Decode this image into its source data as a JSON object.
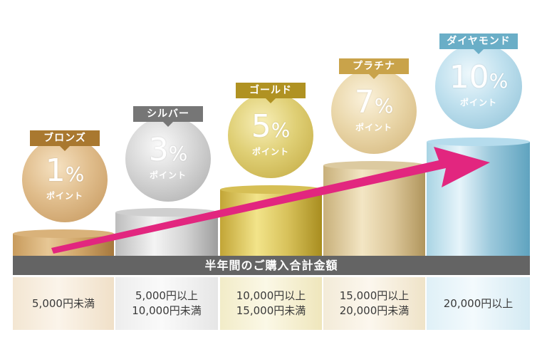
{
  "band_label": "半年間のご購入合計金額",
  "point_label": "ポイント",
  "tiers": [
    {
      "name": "ブロンズ",
      "rate": "1",
      "unit": "%",
      "range_line1": "5,000円未満",
      "range_line2": "",
      "color": "#a9782f"
    },
    {
      "name": "シルバー",
      "rate": "3",
      "unit": "%",
      "range_line1": "5,000円以上",
      "range_line2": "10,000円未満",
      "color": "#767676"
    },
    {
      "name": "ゴールド",
      "rate": "5",
      "unit": "%",
      "range_line1": "10,000円以上",
      "range_line2": "15,000円未満",
      "color": "#b09222"
    },
    {
      "name": "プラチナ",
      "rate": "7",
      "unit": "%",
      "range_line1": "15,000円以上",
      "range_line2": "20,000円未満",
      "color": "#c9a34a"
    },
    {
      "name": "ダイヤモンド",
      "rate": "10",
      "unit": "%",
      "range_line1": "20,000円以上",
      "range_line2": "",
      "color": "#6aaec7"
    }
  ],
  "arrow_color": "#e2267f"
}
